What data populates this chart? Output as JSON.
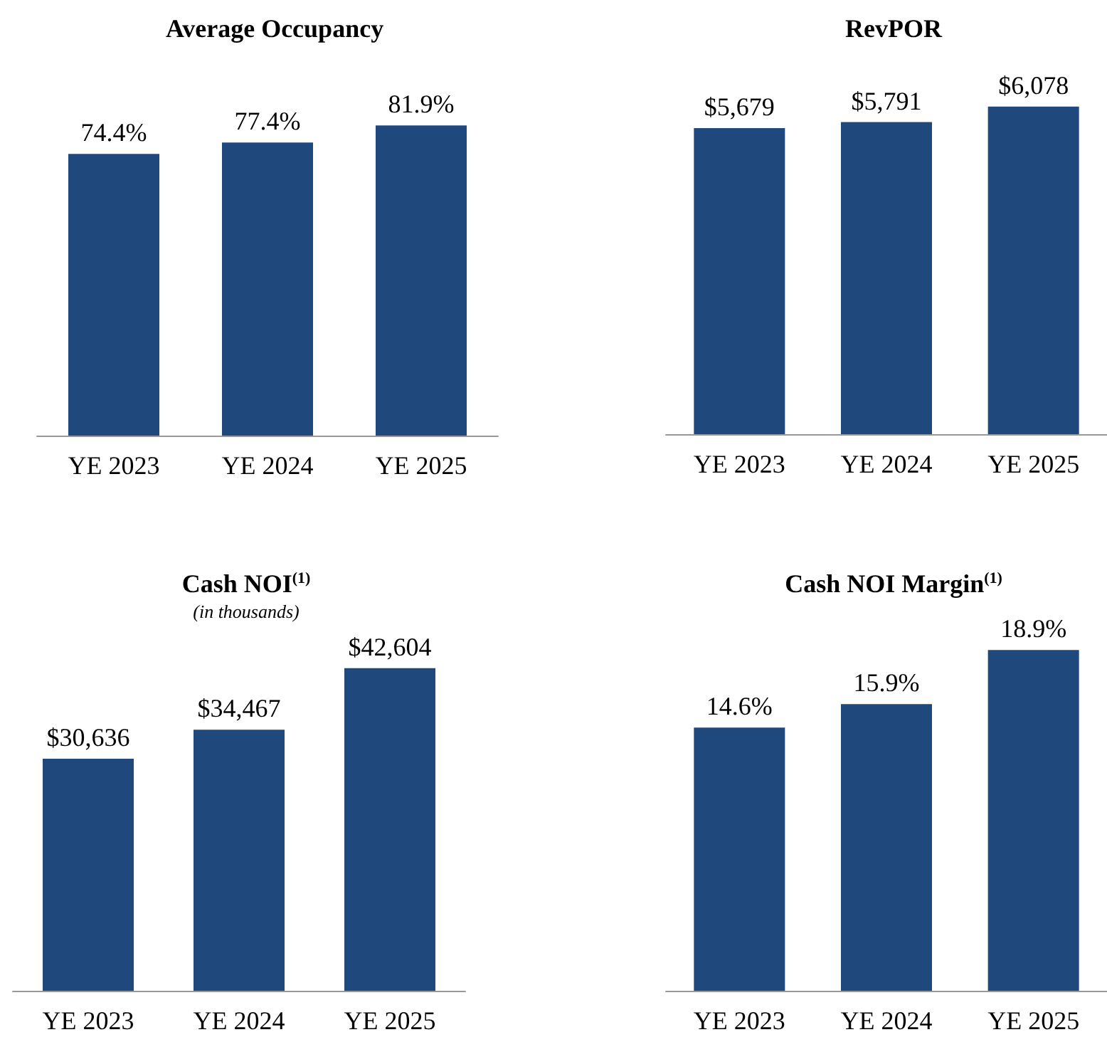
{
  "chart_data": [
    {
      "type": "bar",
      "title": "Average Occupancy",
      "categories": [
        "YE 2023",
        "YE 2024",
        "YE 2025"
      ],
      "values": [
        74.4,
        77.4,
        81.9
      ],
      "value_labels": [
        "74.4%",
        "77.4%",
        "81.9%"
      ],
      "color": "#1f497d",
      "tick_labels": "x"
    },
    {
      "type": "bar",
      "title": "RevPOR",
      "categories": [
        "YE 2023",
        "YE 2024",
        "YE 2025"
      ],
      "values": [
        5679,
        5791,
        6078
      ],
      "value_labels": [
        "$5,679",
        "$5,791",
        "$6,078"
      ],
      "color": "#1f497d",
      "tick_labels": "x"
    },
    {
      "type": "bar",
      "title": "Cash NOI$^{(1)}$",
      "subtitle": "(in thousands)",
      "categories": [
        "YE 2023",
        "YE 2024",
        "YE 2025"
      ],
      "values": [
        30636,
        34467,
        42604
      ],
      "value_labels": [
        "$30,636",
        "$34,467",
        "$42,604"
      ],
      "color": "#1f497d",
      "tick_labels": "x"
    },
    {
      "type": "bar",
      "title": "Cash NOI Margin$^{(1)}$",
      "categories": [
        "YE 2023",
        "YE 2024",
        "YE 2025"
      ],
      "values": [
        14.6,
        15.9,
        18.9
      ],
      "value_labels": [
        "14.6%",
        "15.9%",
        "18.9%"
      ],
      "color": "#1f497d",
      "tick_labels": "x"
    }
  ]
}
